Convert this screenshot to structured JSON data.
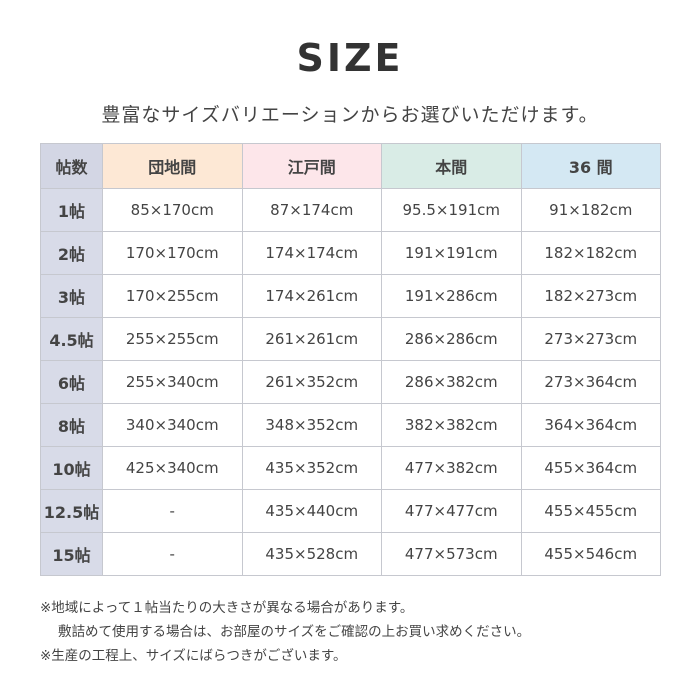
{
  "title": "SIZE",
  "subtitle": "豊富なサイズバリエーションからお選びいただけます。",
  "colors": {
    "col0": "#d3d6e4",
    "danchima": "#fde8d5",
    "edoma": "#fde6ea",
    "honma": "#d9ece6",
    "36ma": "#d4e8f3"
  },
  "table": {
    "headers": [
      "帖数",
      "団地間",
      "江戸間",
      "本間",
      "36 間"
    ],
    "rows": [
      [
        "1帖",
        "85×170cm",
        "87×174cm",
        "95.5×191cm",
        "91×182cm"
      ],
      [
        "2帖",
        "170×170cm",
        "174×174cm",
        "191×191cm",
        "182×182cm"
      ],
      [
        "3帖",
        "170×255cm",
        "174×261cm",
        "191×286cm",
        "182×273cm"
      ],
      [
        "4.5帖",
        "255×255cm",
        "261×261cm",
        "286×286cm",
        "273×273cm"
      ],
      [
        "6帖",
        "255×340cm",
        "261×352cm",
        "286×382cm",
        "273×364cm"
      ],
      [
        "8帖",
        "340×340cm",
        "348×352cm",
        "382×382cm",
        "364×364cm"
      ],
      [
        "10帖",
        "425×340cm",
        "435×352cm",
        "477×382cm",
        "455×364cm"
      ],
      [
        "12.5帖",
        "-",
        "435×440cm",
        "477×477cm",
        "455×455cm"
      ],
      [
        "15帖",
        "-",
        "435×528cm",
        "477×573cm",
        "455×546cm"
      ]
    ]
  },
  "notes": [
    "※地域によって１帖当たりの大きさが異なる場合があります。",
    "敷詰めて使用する場合は、お部屋のサイズをご確認の上お買い求めください。",
    "※生産の工程上、サイズにばらつきがございます。"
  ]
}
